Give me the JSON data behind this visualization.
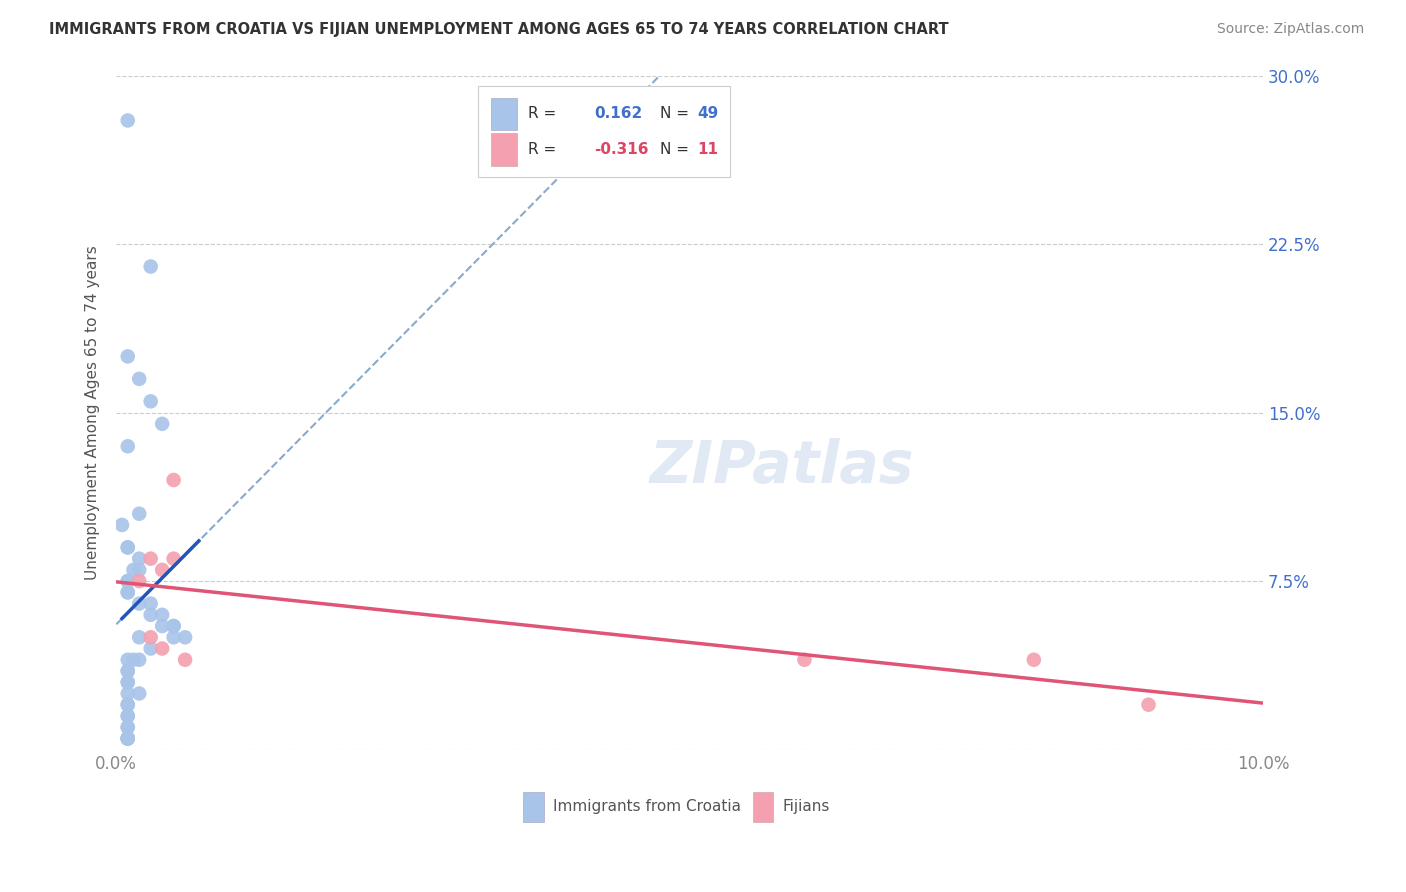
{
  "title": "IMMIGRANTS FROM CROATIA VS FIJIAN UNEMPLOYMENT AMONG AGES 65 TO 74 YEARS CORRELATION CHART",
  "source": "Source: ZipAtlas.com",
  "ylabel": "Unemployment Among Ages 65 to 74 years",
  "xlim": [
    0.0,
    0.1
  ],
  "ylim": [
    0.0,
    0.3
  ],
  "xticks": [
    0.0,
    0.02,
    0.04,
    0.06,
    0.08,
    0.1
  ],
  "xticklabels": [
    "0.0%",
    "",
    "",
    "",
    "",
    "10.0%"
  ],
  "yticks_left": [
    0.0,
    0.075,
    0.15,
    0.225,
    0.3
  ],
  "yticklabels_left": [
    "",
    "",
    "",
    "",
    ""
  ],
  "yticks_right": [
    0.075,
    0.15,
    0.225,
    0.3
  ],
  "yticklabels_right": [
    "7.5%",
    "15.0%",
    "22.5%",
    "30.0%"
  ],
  "legend_labels": [
    "Immigrants from Croatia",
    "Fijians"
  ],
  "r_croatia": 0.162,
  "n_croatia": 49,
  "r_fijian": -0.316,
  "n_fijian": 11,
  "color_croatia": "#a8c4e8",
  "color_fijian": "#f4a0b0",
  "line_color_croatia_solid": "#2255bb",
  "line_color_croatia_dash": "#88aacc",
  "line_color_fijian": "#e05575",
  "croatia_x": [
    0.001,
    0.003,
    0.001,
    0.002,
    0.003,
    0.004,
    0.001,
    0.002,
    0.0005,
    0.001,
    0.001,
    0.002,
    0.002,
    0.0015,
    0.001,
    0.001,
    0.001,
    0.001,
    0.002,
    0.003,
    0.003,
    0.004,
    0.004,
    0.005,
    0.005,
    0.006,
    0.005,
    0.002,
    0.003,
    0.002,
    0.001,
    0.0015,
    0.001,
    0.001,
    0.001,
    0.001,
    0.001,
    0.002,
    0.001,
    0.001,
    0.001,
    0.001,
    0.001,
    0.001,
    0.001,
    0.001,
    0.001,
    0.001,
    0.001
  ],
  "croatia_y": [
    0.28,
    0.215,
    0.175,
    0.165,
    0.155,
    0.145,
    0.135,
    0.105,
    0.1,
    0.09,
    0.09,
    0.085,
    0.08,
    0.08,
    0.075,
    0.075,
    0.07,
    0.07,
    0.065,
    0.065,
    0.06,
    0.06,
    0.055,
    0.055,
    0.055,
    0.05,
    0.05,
    0.05,
    0.045,
    0.04,
    0.04,
    0.04,
    0.035,
    0.035,
    0.03,
    0.03,
    0.025,
    0.025,
    0.02,
    0.02,
    0.015,
    0.015,
    0.01,
    0.01,
    0.005,
    0.005,
    0.005,
    0.005,
    0.005
  ],
  "fijian_x": [
    0.002,
    0.003,
    0.003,
    0.004,
    0.004,
    0.005,
    0.005,
    0.006,
    0.06,
    0.08,
    0.09
  ],
  "fijian_y": [
    0.075,
    0.085,
    0.05,
    0.045,
    0.08,
    0.12,
    0.085,
    0.04,
    0.04,
    0.04,
    0.02
  ],
  "watermark": "ZIPatlas",
  "background_color": "#ffffff",
  "grid_color": "#cccccc",
  "text_color_blue": "#4070cc",
  "text_color_pink": "#dd4466",
  "text_color_dark": "#333333",
  "text_color_gray": "#888888"
}
